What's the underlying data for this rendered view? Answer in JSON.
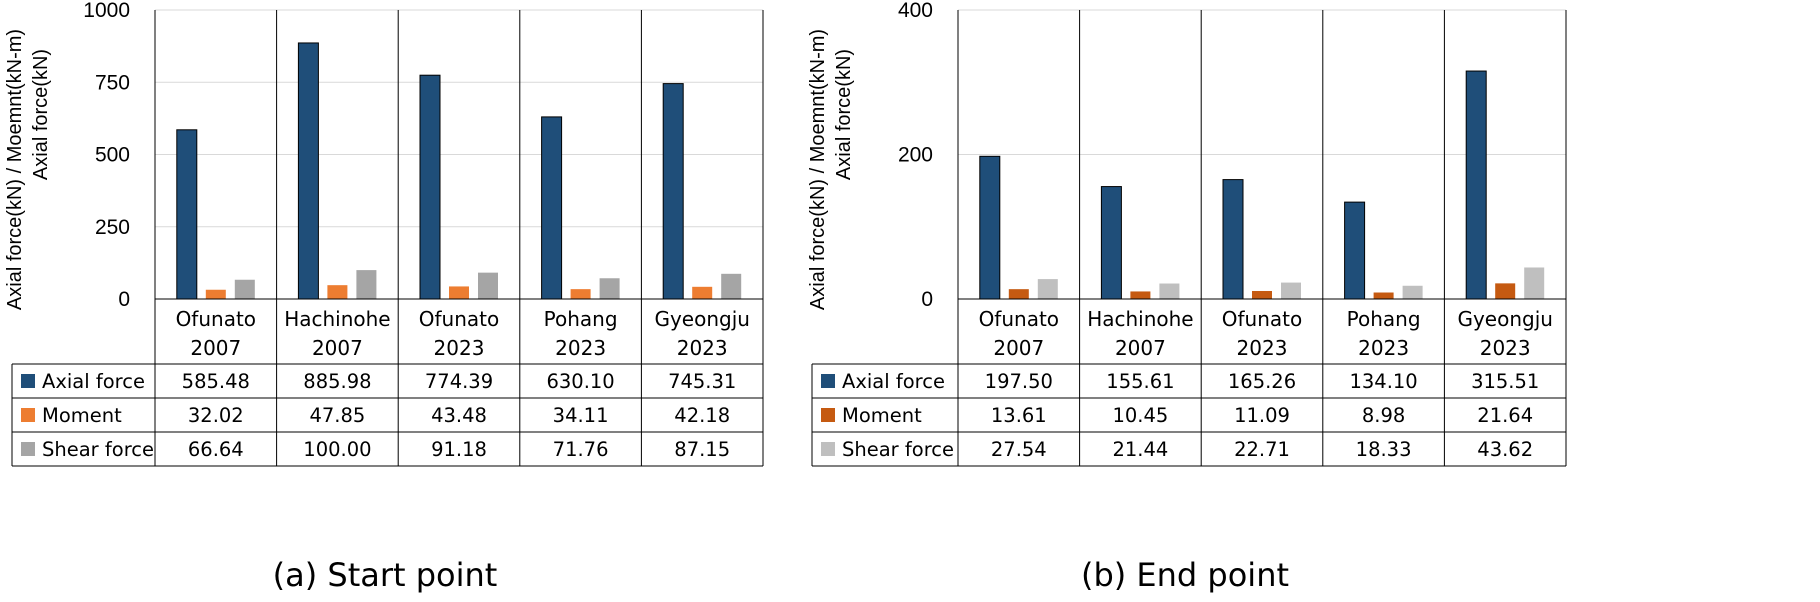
{
  "chart_data": [
    {
      "type": "bar",
      "ylabel": [
        "Axial force(kN) / Moemnt(kN-m)",
        "Axial force(kN)"
      ],
      "ylim": [
        0,
        1000
      ],
      "yticks": [
        "0",
        "250",
        "500",
        "750",
        "1000"
      ],
      "categories": [
        [
          "Ofunato",
          "2007"
        ],
        [
          "Hachinohe",
          "2007"
        ],
        [
          "Ofunato",
          "2023"
        ],
        [
          "Pohang",
          "2023"
        ],
        [
          "Gyeongju",
          "2023"
        ]
      ],
      "series": [
        {
          "name": "Axial force",
          "color": "#1f4e79",
          "values": [
            585.48,
            885.98,
            774.39,
            630.1,
            745.31
          ],
          "labels": [
            "585.48",
            "885.98",
            "774.39",
            "630.10",
            "745.31"
          ]
        },
        {
          "name": "Moment",
          "color": "#ed7d31",
          "values": [
            32.02,
            47.85,
            43.48,
            34.11,
            42.18
          ],
          "labels": [
            "32.02",
            "47.85",
            "43.48",
            "34.11",
            "42.18"
          ]
        },
        {
          "name": "Shear force",
          "color": "#a5a5a5",
          "values": [
            66.64,
            100.0,
            91.18,
            71.76,
            87.15
          ],
          "labels": [
            "66.64",
            "100.00",
            "91.18",
            "71.76",
            "87.15"
          ]
        }
      ],
      "caption": "(a)  Start point",
      "grid": true,
      "legend": "data-table"
    },
    {
      "type": "bar",
      "ylabel": [
        "Axial force(kN) / Moemnt(kN-m)",
        "Axial force(kN)"
      ],
      "ylim": [
        0,
        400
      ],
      "yticks": [
        "0",
        "200",
        "400"
      ],
      "categories": [
        [
          "Ofunato",
          "2007"
        ],
        [
          "Hachinohe",
          "2007"
        ],
        [
          "Ofunato",
          "2023"
        ],
        [
          "Pohang",
          "2023"
        ],
        [
          "Gyeongju",
          "2023"
        ]
      ],
      "series": [
        {
          "name": "Axial force",
          "color": "#1f4e79",
          "values": [
            197.5,
            155.61,
            165.26,
            134.1,
            315.51
          ],
          "labels": [
            "197.50",
            "155.61",
            "165.26",
            "134.10",
            "315.51"
          ]
        },
        {
          "name": "Moment",
          "color": "#c55a11",
          "values": [
            13.61,
            10.45,
            11.09,
            8.98,
            21.64
          ],
          "labels": [
            "13.61",
            "10.45",
            "11.09",
            "8.98",
            "21.64"
          ]
        },
        {
          "name": "Shear force",
          "color": "#bfbfbf",
          "values": [
            27.54,
            21.44,
            22.71,
            18.33,
            43.62
          ],
          "labels": [
            "27.54",
            "21.44",
            "22.71",
            "18.33",
            "43.62"
          ]
        }
      ],
      "caption": "(b)  End point",
      "grid": true,
      "legend": "data-table"
    }
  ]
}
